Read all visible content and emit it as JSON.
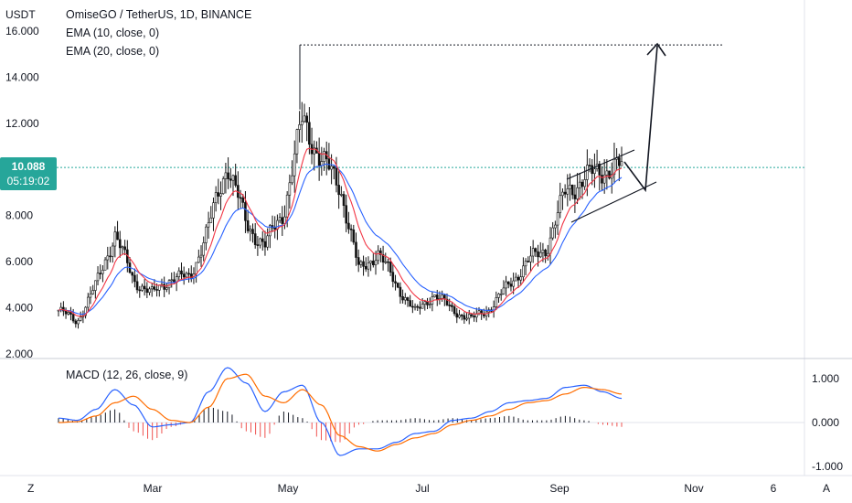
{
  "header": {
    "symbol_line": "OmiseGO / TetherUS, 1D, BINANCE",
    "ema10_label": "EMA (10, close, 0)",
    "ema20_label": "EMA (20, close, 0)",
    "macd_label": "MACD (12, 26, close, 9)",
    "price_unit": "USDT"
  },
  "price_badge": {
    "price": "10.088",
    "countdown": "05:19:02",
    "color": "#26a69a"
  },
  "bottom_bar": {
    "left_icon_label": "Z",
    "right_icon_label": "A"
  },
  "colors": {
    "up": "#26a69a",
    "down": "#ef5350",
    "candle_up": "#111111",
    "candle_down": "#111111",
    "ema10": "#f23645",
    "ema20": "#2962ff",
    "macd_line": "#2962ff",
    "signal_line": "#ff6d00",
    "hist_pos": "#131722",
    "hist_neg": "#ef5350",
    "grid": "#e0e3eb",
    "dotted_line": "#26a69a"
  },
  "chart_data": [
    {
      "type": "candlestick",
      "title": "OmiseGO / TetherUS, 1D, BINANCE",
      "ylabel": "USDT",
      "ylim": [
        2.0,
        16.0
      ],
      "y_ticks": [
        "16.000",
        "14.000",
        "12.000",
        "10.000",
        "8.000",
        "6.000",
        "4.000",
        "2.000"
      ],
      "x_ticks": [
        "Mar",
        "May",
        "Jul",
        "Sep",
        "Nov",
        "6"
      ],
      "last_price": 10.088,
      "approx_close_path": [
        {
          "date": "Jan 1",
          "close": 3.9
        },
        {
          "date": "Jan 15",
          "close": 3.4
        },
        {
          "date": "Feb 1",
          "close": 5.0
        },
        {
          "date": "Feb 12",
          "close": 7.2
        },
        {
          "date": "Feb 20",
          "close": 5.2
        },
        {
          "date": "Mar 5",
          "close": 4.6
        },
        {
          "date": "Mar 20",
          "close": 5.3
        },
        {
          "date": "Apr 1",
          "close": 5.3
        },
        {
          "date": "Apr 10",
          "close": 7.5
        },
        {
          "date": "Apr 20",
          "close": 10.3
        },
        {
          "date": "Apr 28",
          "close": 7.6
        },
        {
          "date": "May 5",
          "close": 6.7
        },
        {
          "date": "May 15",
          "close": 8.2
        },
        {
          "date": "May 20",
          "close": 12.2
        },
        {
          "date": "May 24",
          "close": 10.4
        },
        {
          "date": "May 30",
          "close": 9.3
        },
        {
          "date": "Jun 5",
          "close": 5.6
        },
        {
          "date": "Jun 12",
          "close": 6.4
        },
        {
          "date": "Jun 20",
          "close": 5.0
        },
        {
          "date": "Jul 1",
          "close": 3.8
        },
        {
          "date": "Jul 10",
          "close": 4.6
        },
        {
          "date": "Jul 20",
          "close": 3.9
        },
        {
          "date": "Aug 1",
          "close": 3.5
        },
        {
          "date": "Aug 10",
          "close": 4.0
        },
        {
          "date": "Aug 20",
          "close": 5.0
        },
        {
          "date": "Sep 1",
          "close": 6.0
        },
        {
          "date": "Sep 8",
          "close": 6.6
        },
        {
          "date": "Sep 12",
          "close": 9.0
        },
        {
          "date": "Sep 20",
          "close": 9.6
        },
        {
          "date": "Sep 28",
          "close": 10.0
        },
        {
          "date": "Oct 3",
          "close": 10.088
        }
      ],
      "ema10": "red line tracking closes",
      "ema20": "blue line tracking closes"
    },
    {
      "type": "line",
      "title": "MACD (12, 26, close, 9)",
      "ylim": [
        -1.0,
        1.0
      ],
      "y_ticks": [
        "1.000",
        "0.000",
        "-1.000"
      ],
      "series": [
        {
          "name": "MACD",
          "values": [
            0.1,
            0.05,
            0.3,
            0.75,
            0.4,
            -0.1,
            -0.05,
            0.0,
            0.7,
            1.25,
            0.9,
            0.25,
            0.7,
            0.85,
            0.0,
            -0.75,
            -0.6,
            -0.6,
            -0.45,
            -0.25,
            -0.2,
            0.05,
            0.1,
            0.25,
            0.45,
            0.5,
            0.55,
            0.8,
            0.85,
            0.7,
            0.55
          ]
        },
        {
          "name": "Signal",
          "values": [
            0.0,
            0.02,
            0.15,
            0.45,
            0.6,
            0.3,
            0.05,
            0.0,
            0.35,
            1.0,
            1.1,
            0.6,
            0.45,
            0.75,
            0.4,
            -0.3,
            -0.55,
            -0.65,
            -0.5,
            -0.35,
            -0.25,
            -0.05,
            0.05,
            0.15,
            0.3,
            0.45,
            0.5,
            0.65,
            0.8,
            0.75,
            0.65
          ]
        },
        {
          "name": "Histogram",
          "values": [
            0.1,
            0.03,
            0.15,
            0.3,
            -0.2,
            -0.4,
            -0.1,
            0.0,
            0.35,
            0.25,
            -0.2,
            -0.35,
            0.25,
            0.1,
            -0.4,
            -0.45,
            -0.05,
            0.05,
            0.05,
            0.1,
            0.05,
            0.1,
            0.05,
            0.1,
            0.15,
            0.05,
            0.05,
            0.15,
            0.05,
            -0.05,
            -0.1
          ]
        }
      ]
    }
  ],
  "annotations": {
    "target_line_price": 15.4,
    "channel_label": "ascending channel with projected arrow"
  }
}
